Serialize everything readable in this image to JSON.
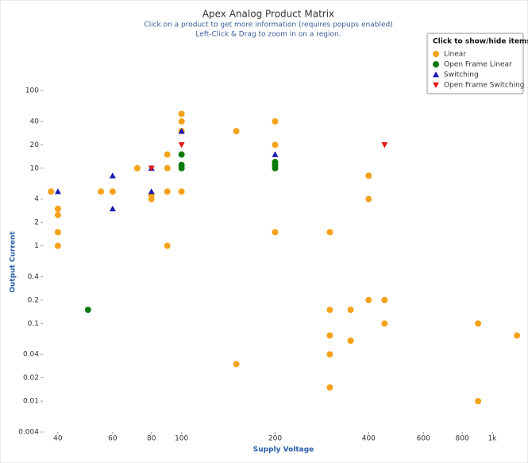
{
  "chart_data": {
    "type": "scatter",
    "title": "Apex Analog Product Matrix",
    "subtitle": [
      "Click on a product to get more information (requires popups enabled)",
      "Left-Click & Drag to zoom in on a region."
    ],
    "legend_title": "Click to show/hide items",
    "xlabel": "Supply Voltage",
    "ylabel": "Output Current",
    "xscale": "log",
    "yscale": "log",
    "grid": false,
    "legend": "upper right",
    "xlim": [
      36,
      1250
    ],
    "ylim": [
      0.004,
      100
    ],
    "xticks": [
      40,
      60,
      80,
      100,
      200,
      400,
      600,
      800,
      {
        "value": 1000,
        "label": "1k"
      }
    ],
    "yticks": [
      0.004,
      0.01,
      0.02,
      0.04,
      0.1,
      0.2,
      0.4,
      1,
      2,
      4,
      10,
      20,
      40,
      100
    ],
    "series": [
      {
        "name": "Linear",
        "color": "#f7a21b",
        "marker": "circle",
        "x": [
          38,
          40,
          40,
          40,
          40,
          55,
          60,
          72,
          80,
          80,
          90,
          90,
          90,
          90,
          100,
          100,
          100,
          100,
          150,
          200,
          200,
          200,
          150,
          300,
          300,
          300,
          300,
          300,
          350,
          350,
          400,
          400,
          400,
          450,
          450,
          900,
          900,
          1200
        ],
        "values": [
          5,
          3,
          2.5,
          1.5,
          1,
          5,
          5,
          10,
          4.5,
          4,
          15,
          10,
          5,
          1,
          50,
          40,
          30,
          5,
          30,
          40,
          20,
          1.5,
          0.03,
          1.5,
          0.15,
          0.07,
          0.04,
          0.015,
          0.15,
          0.06,
          8,
          4,
          0.2,
          0.2,
          0.1,
          0.1,
          0.01,
          0.07
        ]
      },
      {
        "name": "Open Frame Linear",
        "color": "#0b7a0b",
        "marker": "circle",
        "x": [
          50,
          100,
          100,
          100,
          200,
          200,
          200
        ],
        "values": [
          0.15,
          15,
          11,
          10,
          12,
          11,
          10
        ]
      },
      {
        "name": "Switching",
        "color": "#1a1ab5",
        "marker": "triangle-up",
        "x": [
          40,
          60,
          60,
          80,
          80,
          100,
          200
        ],
        "values": [
          5,
          8,
          3,
          10,
          5,
          30,
          15
        ]
      },
      {
        "name": "Open Frame Switching",
        "color": "#e01818",
        "marker": "triangle-down",
        "x": [
          80,
          100,
          450
        ],
        "values": [
          10,
          20,
          20
        ]
      }
    ]
  }
}
